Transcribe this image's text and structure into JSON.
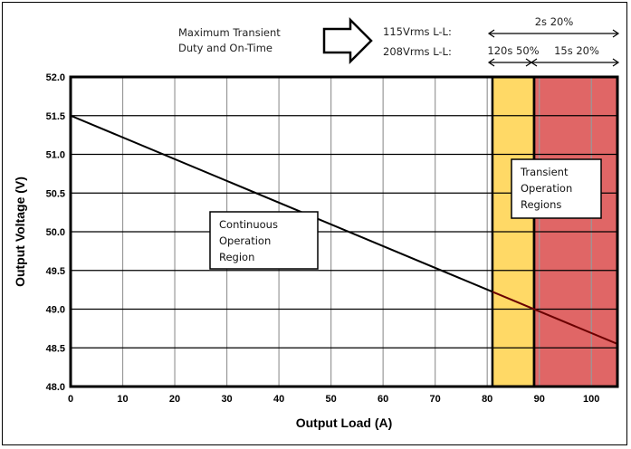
{
  "chart_data": {
    "type": "line",
    "xlabel": "Output Load (A)",
    "ylabel": "Output Voltage (V)",
    "xlim": [
      0,
      105
    ],
    "ylim": [
      48.0,
      52.0
    ],
    "x_ticks": [
      "0",
      "10",
      "20",
      "30",
      "40",
      "50",
      "60",
      "70",
      "80",
      "90",
      "100"
    ],
    "y_ticks": [
      "48.0",
      "48.5",
      "49.0",
      "49.5",
      "50.0",
      "50.5",
      "51.0",
      "51.5",
      "52.0"
    ],
    "grid": true,
    "series": [
      {
        "values": [
          [
            0,
            51.5
          ],
          [
            105,
            48.55
          ]
        ]
      }
    ],
    "regions": [
      {
        "x": [
          81,
          89
        ],
        "color": "#ffd966"
      },
      {
        "x": [
          89,
          105
        ],
        "color": "#e06666"
      }
    ],
    "annotations": {
      "continuous": [
        "Continuous",
        "Operation",
        "Region"
      ],
      "transient": [
        "Transient",
        "Operation",
        "Regions"
      ]
    }
  },
  "header": {
    "duty_line1": "Maximum Transient",
    "duty_line2": "Duty and On-Time",
    "v115": "115Vrms L-L:",
    "v208": "208Vrms L-L:",
    "span_top": "2s 20%",
    "span_left": "120s 50%",
    "span_right": "15s 20%"
  },
  "colors": {
    "line": "#000000",
    "line_dark": "#6b0000",
    "yellow": "#ffd966",
    "red": "#e06666",
    "grid": "#999999"
  }
}
